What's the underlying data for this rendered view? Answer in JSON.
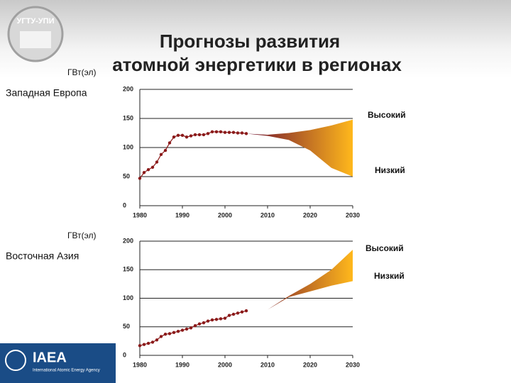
{
  "title_line1": "Прогнозы развития",
  "title_line2": "атомной энергетики в регионах",
  "logo_text": "УГТУ-УПИ",
  "footer_logo": "IAEA",
  "footer_subtitle": "International Atomic Energy Agency",
  "chart_data": [
    {
      "type": "line",
      "region": "Западная Европа",
      "ylabel": "ГВт(эл)",
      "xlim": [
        1980,
        2030
      ],
      "xticks": [
        1980,
        1990,
        2000,
        2010,
        2020,
        2030
      ],
      "ylim": [
        0,
        200
      ],
      "yticks": [
        0,
        50,
        100,
        150,
        200
      ],
      "grid": true,
      "band_colors": [
        "#6e0f2e",
        "#ffb81c"
      ],
      "series": [
        {
          "color": "#8b1a1a",
          "x": [
            1980,
            1981,
            1982,
            1983,
            1984,
            1985,
            1986,
            1987,
            1988,
            1989,
            1990,
            1991,
            1992,
            1993,
            1994,
            1995,
            1996,
            1997,
            1998,
            1999,
            2000,
            2001,
            2002,
            2003,
            2004,
            2005
          ],
          "values": [
            47,
            57,
            62,
            66,
            75,
            88,
            95,
            108,
            118,
            121,
            121,
            118,
            120,
            122,
            122,
            122,
            124,
            127,
            127,
            127,
            126,
            126,
            126,
            125,
            125,
            124
          ]
        },
        {
          "name": "Высокий",
          "x": [
            2005,
            2010,
            2015,
            2020,
            2025,
            2030
          ],
          "values": [
            124,
            122,
            125,
            130,
            138,
            148
          ]
        },
        {
          "name": "Низкий",
          "x": [
            2005,
            2010,
            2015,
            2020,
            2025,
            2030
          ],
          "values": [
            124,
            120,
            113,
            95,
            65,
            50
          ]
        }
      ]
    },
    {
      "type": "line",
      "region": "Восточная Азия",
      "ylabel": "ГВт(эл)",
      "xlim": [
        1980,
        2030
      ],
      "xticks": [
        1980,
        1990,
        2000,
        2010,
        2020,
        2030
      ],
      "ylim": [
        0,
        200
      ],
      "yticks": [
        0,
        50,
        100,
        150,
        200
      ],
      "grid": true,
      "band_colors": [
        "#6e0f2e",
        "#ffb81c"
      ],
      "series": [
        {
          "color": "#8b1a1a",
          "x": [
            1980,
            1981,
            1982,
            1983,
            1984,
            1985,
            1986,
            1987,
            1988,
            1989,
            1990,
            1991,
            1992,
            1993,
            1994,
            1995,
            1996,
            1997,
            1998,
            1999,
            2000,
            2001,
            2002,
            2003,
            2004,
            2005
          ],
          "values": [
            17,
            19,
            21,
            23,
            27,
            33,
            37,
            38,
            40,
            42,
            44,
            46,
            48,
            52,
            55,
            57,
            60,
            62,
            63,
            64,
            65,
            70,
            72,
            74,
            76,
            78
          ]
        },
        {
          "name": "Высокий",
          "x": [
            2005,
            2010,
            2015,
            2020,
            2025,
            2030
          ],
          "values": [
            78,
            80,
            104,
            125,
            150,
            185
          ]
        },
        {
          "name": "Низкий",
          "x": [
            2005,
            2010,
            2015,
            2020,
            2025,
            2030
          ],
          "values": [
            78,
            80,
            102,
            112,
            122,
            130
          ]
        }
      ]
    }
  ]
}
